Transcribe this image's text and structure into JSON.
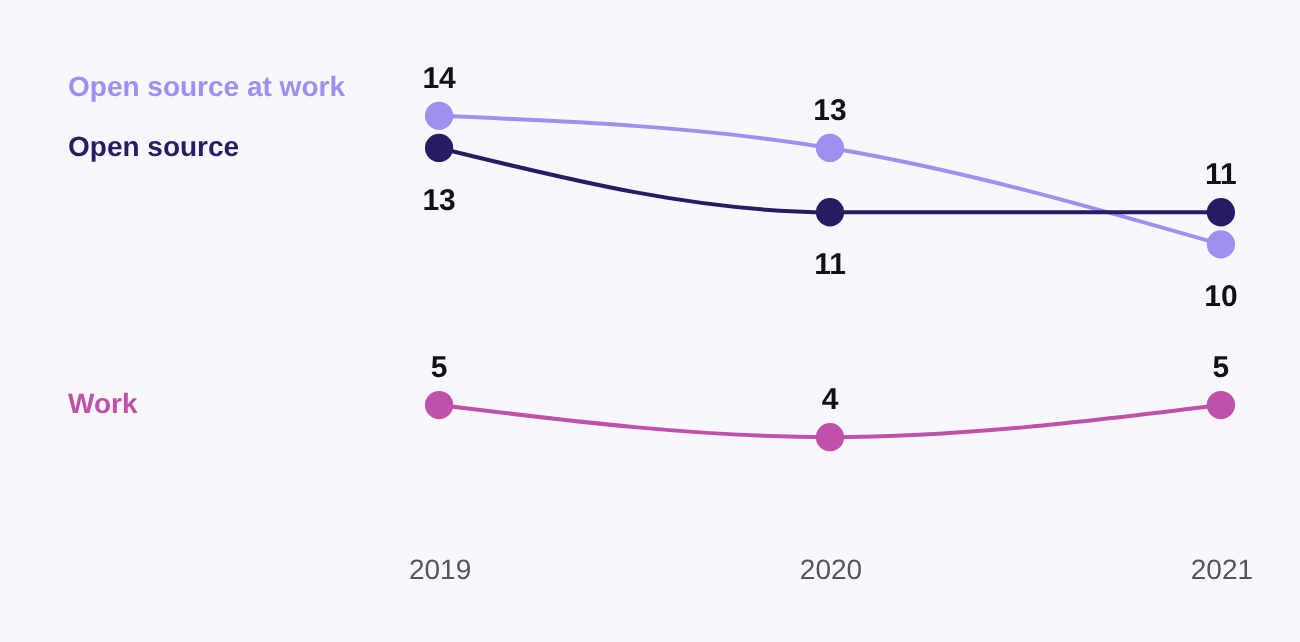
{
  "chart_data": {
    "type": "line",
    "categories": [
      "2019",
      "2020",
      "2021"
    ],
    "series": [
      {
        "name": "Open source at work",
        "color": "#a08ff0",
        "values": [
          14,
          13,
          10
        ]
      },
      {
        "name": "Open source",
        "color": "#291b63",
        "values": [
          13,
          11,
          11
        ]
      },
      {
        "name": "Work",
        "color": "#bf51aa",
        "values": [
          5,
          4,
          5
        ]
      }
    ],
    "data_labels": true,
    "marker": "circle",
    "line_style": "solid",
    "grid": false,
    "legend": false,
    "tick_labels": "x"
  }
}
